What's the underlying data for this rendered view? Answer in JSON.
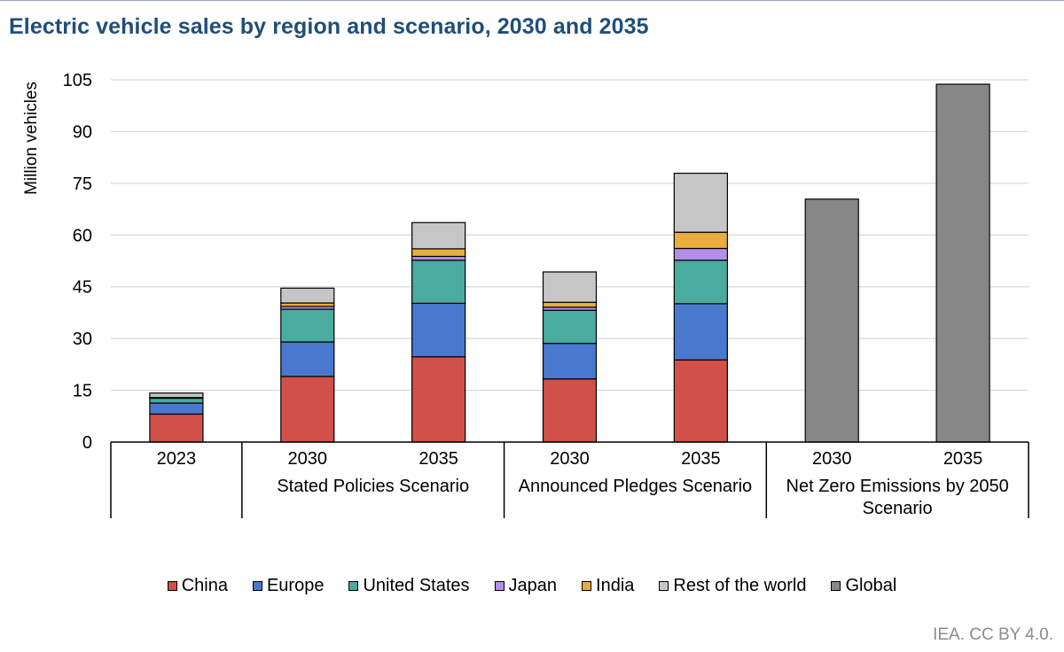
{
  "chart_data": {
    "type": "bar",
    "stacked": true,
    "title": "Electric vehicle sales by region and scenario, 2030 and 2035",
    "ylabel": "Million vehicles",
    "ylim": [
      0,
      105
    ],
    "yticks": [
      0,
      15,
      30,
      45,
      60,
      75,
      90,
      105
    ],
    "grid": true,
    "legend_position": "bottom",
    "categories": [
      "2023",
      "2030",
      "2035",
      "2030",
      "2035",
      "2030",
      "2035"
    ],
    "groups": [
      {
        "label": "",
        "categories": [
          "2023"
        ]
      },
      {
        "label": "Stated Policies Scenario",
        "categories": [
          "2030",
          "2035"
        ]
      },
      {
        "label": "Announced Pledges Scenario",
        "categories": [
          "2030",
          "2035"
        ]
      },
      {
        "label": "Net Zero Emissions by 2050 Scenario",
        "categories": [
          "2030",
          "2035"
        ]
      }
    ],
    "series": [
      {
        "name": "China",
        "color": "#d1514a",
        "values": [
          8.1,
          19.0,
          24.7,
          18.3,
          23.8,
          0,
          0
        ]
      },
      {
        "name": "Europe",
        "color": "#4a78cf",
        "values": [
          3.2,
          10.0,
          15.5,
          10.3,
          16.3,
          0,
          0
        ]
      },
      {
        "name": "United States",
        "color": "#4aab9f",
        "values": [
          1.4,
          9.5,
          12.5,
          9.6,
          12.6,
          0,
          0
        ]
      },
      {
        "name": "Japan",
        "color": "#b48ee8",
        "values": [
          0.1,
          0.8,
          1.1,
          0.9,
          3.4,
          0,
          0
        ]
      },
      {
        "name": "India",
        "color": "#e9ad3c",
        "values": [
          0.1,
          1.0,
          2.2,
          1.4,
          4.7,
          0,
          0
        ]
      },
      {
        "name": "Rest of the world",
        "color": "#c6c6c6",
        "values": [
          1.3,
          4.3,
          7.6,
          8.8,
          17.1,
          0,
          0
        ]
      },
      {
        "name": "Global",
        "color": "#878787",
        "values": [
          0,
          0,
          0,
          0,
          0,
          70.4,
          103.7
        ]
      }
    ]
  },
  "source": "IEA. CC BY 4.0."
}
